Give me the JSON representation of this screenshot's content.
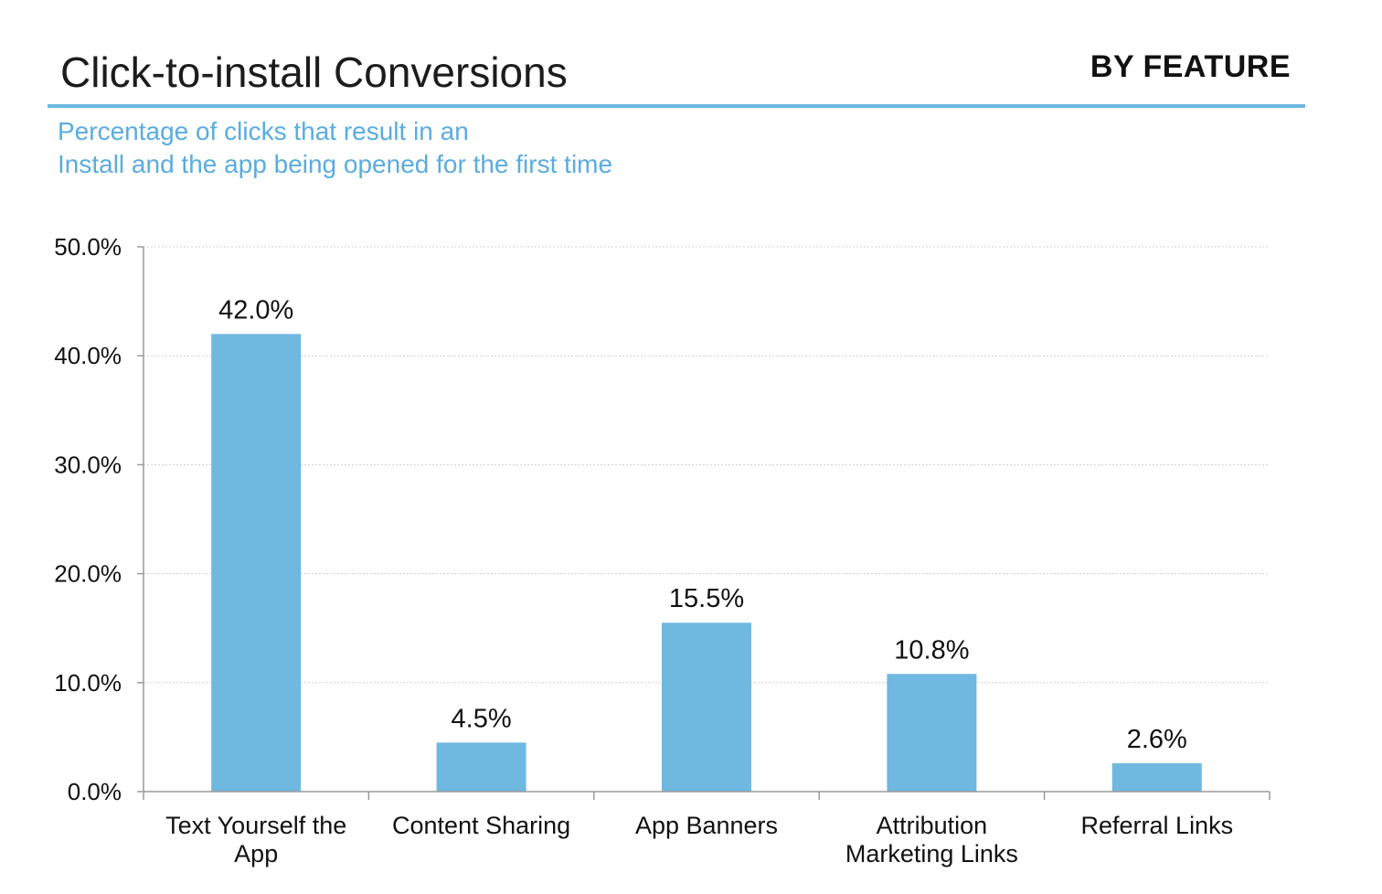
{
  "header": {
    "title": "Click-to-install Conversions",
    "tag": "BY FEATURE"
  },
  "subtitle": {
    "line1": "Percentage of clicks that result in an",
    "line2": "Install and the app being opened for the first time"
  },
  "colors": {
    "accent": "#6cb8e2",
    "bar": "#6fb8e0",
    "subtitle": "#5aace0"
  },
  "chart_data": {
    "type": "bar",
    "title": "Click-to-install Conversions",
    "categories": [
      [
        "Text Yourself the",
        "App"
      ],
      [
        "Content Sharing"
      ],
      [
        "App Banners"
      ],
      [
        "Attribution",
        "Marketing Links"
      ],
      [
        "Referral Links"
      ]
    ],
    "values": [
      42.0,
      4.5,
      15.5,
      10.8,
      2.6
    ],
    "value_labels": [
      "42.0%",
      "4.5%",
      "15.5%",
      "10.8%",
      "2.6%"
    ],
    "y_ticks": [
      "0.0%",
      "10.0%",
      "20.0%",
      "30.0%",
      "40.0%",
      "50.0%"
    ],
    "y_tick_values": [
      0,
      10,
      20,
      30,
      40,
      50
    ],
    "ylim": [
      0,
      50
    ],
    "xlabel": "",
    "ylabel": "",
    "grid": true,
    "legend": "none"
  }
}
